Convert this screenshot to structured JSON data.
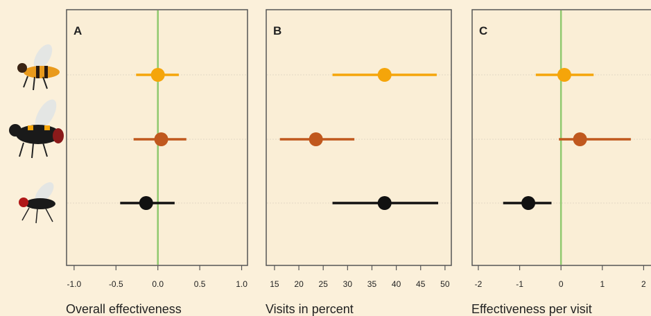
{
  "chart_data": [
    {
      "type": "errorbar",
      "panel_label": "A",
      "xlabel": "Overall effectiveness",
      "categories": [
        null,
        null,
        null
      ],
      "values": [
        0.0,
        0.04,
        -0.14
      ],
      "lower": [
        -0.26,
        -0.29,
        -0.45
      ],
      "upper": [
        0.25,
        0.34,
        0.2
      ],
      "colors": [
        "#f5a50a",
        "#c0581e",
        "#111111"
      ],
      "xlim": [
        -1.09,
        1.07
      ],
      "xticks": [
        {
          "value": -1,
          "label": "-1.0"
        },
        -0.5,
        {
          "value": 0,
          "label": "0.0"
        },
        0.5,
        {
          "value": 1,
          "label": "1.0"
        }
      ],
      "reference_line": 0,
      "reference_color": "#8fc96e"
    },
    {
      "type": "errorbar",
      "panel_label": "B",
      "xlabel": "Visits in percent",
      "categories": [
        null,
        null,
        null
      ],
      "values": [
        37.6,
        23.5,
        37.6
      ],
      "lower": [
        26.9,
        16.1,
        26.9
      ],
      "upper": [
        48.3,
        31.4,
        48.6
      ],
      "colors": [
        "#f5a50a",
        "#c0581e",
        "#111111"
      ],
      "xlim": [
        13.3,
        51.3
      ],
      "xticks": [
        15,
        20,
        25,
        30,
        35,
        40,
        45,
        50
      ]
    },
    {
      "type": "errorbar",
      "panel_label": "C",
      "xlabel": "Effectiveness per visit",
      "categories": [
        null,
        null,
        null
      ],
      "values": [
        0.08,
        0.46,
        -0.79
      ],
      "lower": [
        -0.61,
        -0.05,
        -1.4
      ],
      "upper": [
        0.79,
        1.69,
        -0.23
      ],
      "colors": [
        "#f5a50a",
        "#c0581e",
        "#111111"
      ],
      "xlim": [
        -2.15,
        2.53
      ],
      "xticks": [
        -2,
        -1,
        0,
        1,
        2
      ],
      "reference_line": 0,
      "reference_color": "#8fc96e"
    }
  ]
}
